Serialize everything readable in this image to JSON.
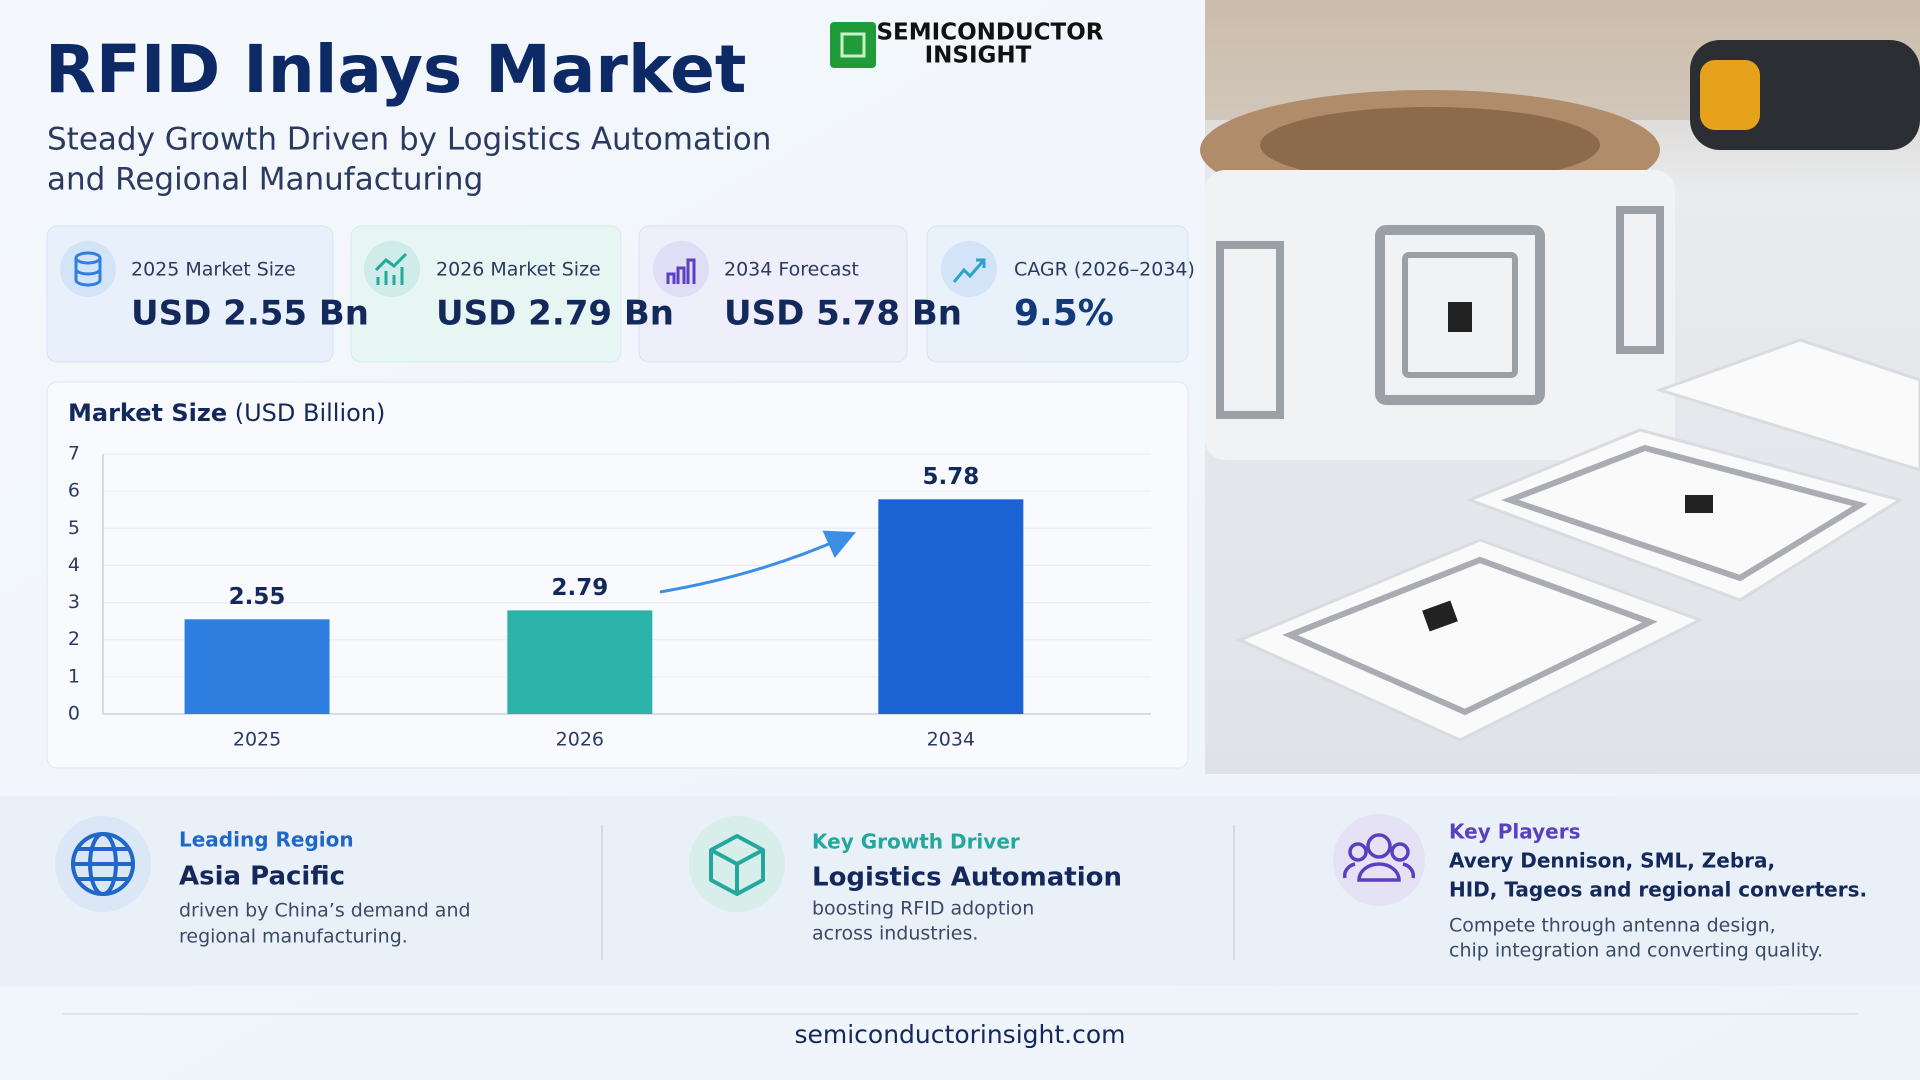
{
  "header": {
    "title": "RFID Inlays Market",
    "subtitle_lines": [
      "Steady Growth Driven by Logistics Automation",
      "and Regional Manufacturing"
    ]
  },
  "logo": {
    "lines": [
      "SEMICONDUCTOR",
      "INSIGHT"
    ]
  },
  "cards": [
    {
      "label": "2025 Market Size",
      "value": "USD 2.55 Bn"
    },
    {
      "label": "2026 Market Size",
      "value": "USD 2.79 Bn"
    },
    {
      "label": "2034 Forecast",
      "value": "USD 5.78 Bn"
    },
    {
      "label": "CAGR (2026–2034)",
      "value": "9.5%"
    }
  ],
  "chart_data": {
    "type": "bar",
    "title": "Market Size",
    "subtitle": "(USD Billion)",
    "categories": [
      "2025",
      "2026",
      "2034"
    ],
    "values": [
      2.55,
      2.79,
      5.78
    ],
    "colors": [
      "#2f7fe0",
      "#2bb3aa",
      "#1b63d4"
    ],
    "ylim": [
      0,
      7
    ],
    "yticks": [
      0,
      1,
      2,
      3,
      4,
      5,
      6,
      7
    ],
    "grid": true
  },
  "highlights": [
    {
      "label": "Leading Region",
      "title_lines": [
        "Asia Pacific"
      ],
      "desc_lines": [
        "driven by China’s demand and",
        "regional manufacturing."
      ]
    },
    {
      "label": "Key Growth Driver",
      "title_lines": [
        "Logistics Automation"
      ],
      "desc_lines": [
        "boosting RFID adoption",
        "across industries."
      ]
    },
    {
      "label": "Key Players",
      "title_lines": [
        "Avery Dennison, SML, Zebra,",
        "HID, Tageos and regional converters."
      ],
      "desc_lines": [
        "Compete through antenna design,",
        "chip integration and converting quality."
      ]
    }
  ],
  "footer": {
    "url": "semiconductorinsight.com"
  }
}
